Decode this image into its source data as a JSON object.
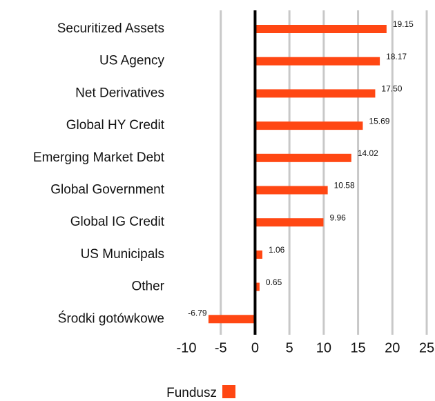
{
  "chart_data": {
    "type": "barh",
    "categories": [
      "Securitized Assets",
      "US Agency",
      "Net Derivatives",
      "Global HY Credit",
      "Emerging Market Debt",
      "Global Government",
      "Global IG Credit",
      "US Municipals",
      "Other",
      "Środki gotówkowe"
    ],
    "series": [
      {
        "name": "Fundusz",
        "color": "#ff4713",
        "values": [
          19.15,
          18.17,
          17.5,
          15.69,
          14.02,
          10.58,
          9.96,
          1.06,
          0.65,
          -6.79
        ],
        "value_labels": [
          "19.15",
          "18.17",
          "17.50",
          "15.69",
          "14.02",
          "10.58",
          "9.96",
          "1.06",
          "0.65",
          "-6.79"
        ]
      }
    ],
    "xlim": [
      -10,
      25
    ],
    "xticks": [
      -10,
      -5,
      0,
      5,
      10,
      15,
      20,
      25
    ],
    "grid": true,
    "legend": "bottom"
  }
}
